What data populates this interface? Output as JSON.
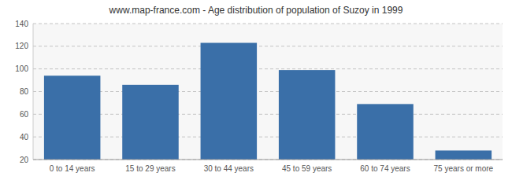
{
  "chart_data": {
    "type": "bar",
    "title": "www.map-france.com - Age distribution of population of Suzoy in 1999",
    "categories": [
      "0 to 14 years",
      "15 to 29 years",
      "30 to 44 years",
      "45 to 59 years",
      "60 to 74 years",
      "75 years or more"
    ],
    "values": [
      94,
      86,
      123,
      99,
      69,
      28
    ],
    "color": "#3a6fa8",
    "ylim": [
      20,
      140
    ],
    "yticks": [
      20,
      40,
      60,
      80,
      100,
      120,
      140
    ],
    "grid": true
  }
}
